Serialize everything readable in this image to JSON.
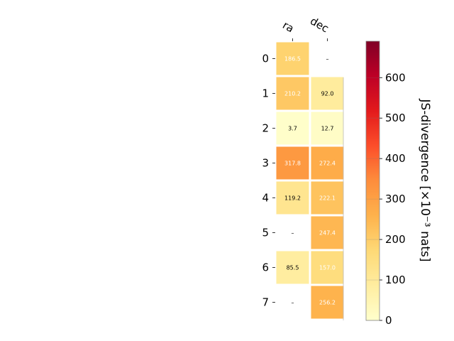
{
  "chart_data": {
    "type": "heatmap",
    "columns": [
      "ra",
      "dec"
    ],
    "rows": [
      "0",
      "1",
      "2",
      "3",
      "4",
      "5",
      "6",
      "7"
    ],
    "values": [
      [
        186.5,
        null
      ],
      [
        210.2,
        92.0
      ],
      [
        3.7,
        12.7
      ],
      [
        317.8,
        272.4
      ],
      [
        119.2,
        222.1
      ],
      [
        null,
        247.4
      ],
      [
        85.5,
        157.0
      ],
      [
        null,
        256.2
      ]
    ],
    "missing_label": "–",
    "colorbar": {
      "label": "JS-divergence [×10⁻³ nats]",
      "ticks": [
        0,
        100,
        200,
        300,
        400,
        500,
        600
      ],
      "range": [
        0,
        690
      ],
      "colormap": "YlOrRd"
    }
  }
}
